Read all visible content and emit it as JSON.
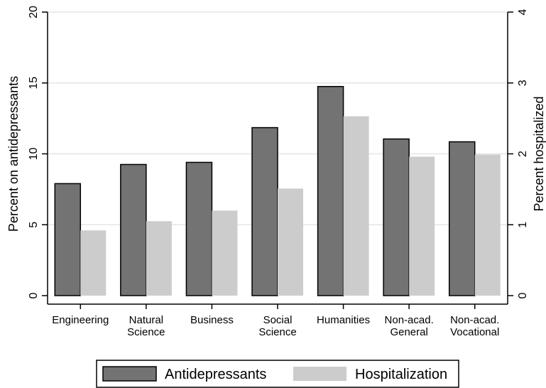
{
  "chart_data": {
    "type": "bar",
    "categories": [
      [
        "Engineering"
      ],
      [
        "Natural",
        "Science"
      ],
      [
        "Business"
      ],
      [
        "Social",
        "Science"
      ],
      [
        "Humanities"
      ],
      [
        "Non-acad.",
        "General"
      ],
      [
        "Non-acad.",
        "Vocational"
      ]
    ],
    "series": [
      {
        "name": "Antidepressants",
        "axis": "left",
        "color": "#737373",
        "values": [
          7.9,
          9.25,
          9.4,
          11.85,
          14.75,
          11.05,
          10.85
        ]
      },
      {
        "name": "Hospitalization",
        "axis": "right",
        "color": "#cccccc",
        "values": [
          0.92,
          1.05,
          1.2,
          1.51,
          2.53,
          1.96,
          1.99
        ]
      }
    ],
    "ylabel_left": "Percent on antidepressants",
    "ylabel_right": "Percent hospitalized",
    "ylim_left": [
      0,
      20
    ],
    "ylim_right": [
      0,
      4
    ],
    "yticks_left": [
      0,
      5,
      10,
      15,
      20
    ],
    "yticks_right": [
      0,
      1,
      2,
      3,
      4
    ],
    "grid": true,
    "legend_position": "bottom"
  }
}
